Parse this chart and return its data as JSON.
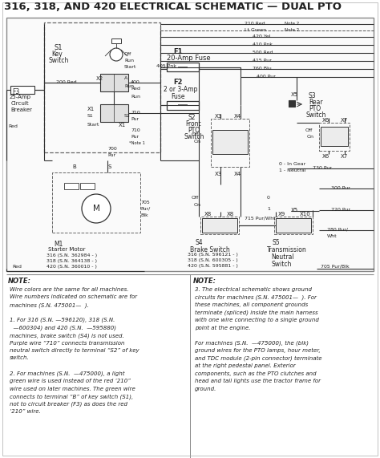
{
  "title": "316, 318, AND 420 ELECTRICAL SCHEMATIC — DUAL PTO",
  "bg_color": "#ffffff",
  "line_color": "#333333",
  "note_left_lines": [
    "Wire colors are the same for all machines.",
    "Wire numbers indicated on schematic are for",
    "machines (S.N. 475001—  ).",
    "",
    "1. For 316 (S.N. —596120), 318 (S.N.",
    "  —600304) and 420 (S.N.  —595880)",
    "machines, brake switch (S4) is not used.",
    "Purple wire “710” connects transmission",
    "neutral switch directly to terminal “S2” of key",
    "switch.",
    "",
    "2. For machines (S.N.  —475000), a light",
    "green wire is used instead of the red ‘210”",
    "wire used on later machines. The green wire",
    "connects to terminal “B” of key switch (S1),",
    "not to circuit breaker (F3) as does the red",
    "‘210” wire."
  ],
  "note_right_lines": [
    "3. The electrical schematic shows ground",
    "circuits for machines (S.N. 475001—  ). For",
    "these machines, all component grounds",
    "terminate (spliced) inside the main harness",
    "with one wire connecting to a single ground",
    "point at the engine.",
    "",
    "For machines (S.N.  —475000), the (blk)",
    "ground wires for the PTO lamps, hour meter,",
    "and TDC module (2-pin connector) terminate",
    "at the right pedestal panel. Exterior",
    "components, such as the PTO clutches and",
    "head and tail lights use the tractor frame for",
    "ground."
  ]
}
